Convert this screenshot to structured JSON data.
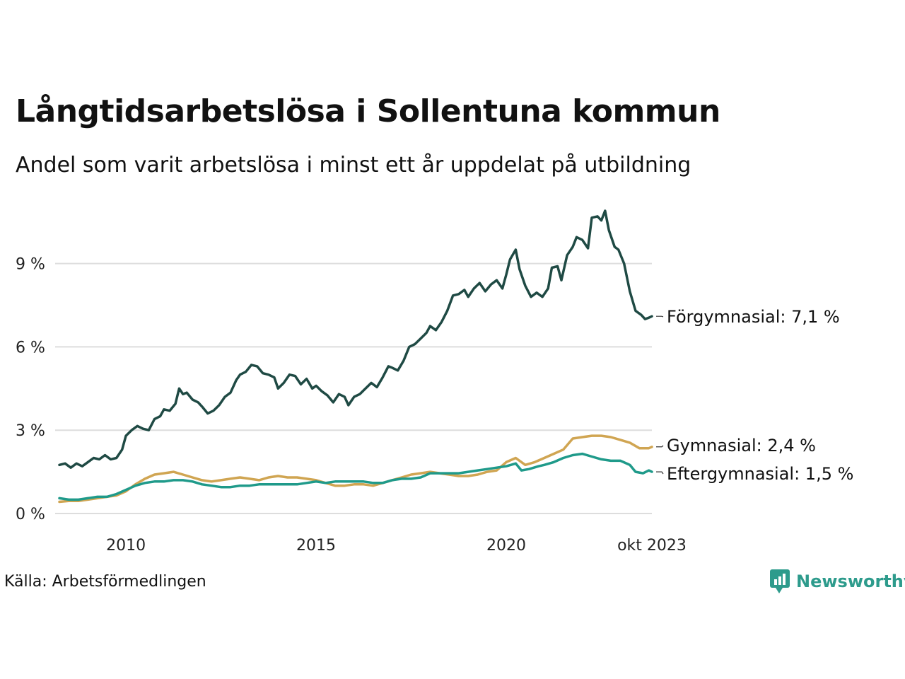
{
  "header": {
    "title": "Långtidsarbetslösa i Sollentuna kommun",
    "subtitle": "Andel som varit arbetslösa i minst ett år uppdelat på utbildning"
  },
  "footer": {
    "source": "Källa: Arbetsförmedlingen",
    "brand": "Newsworthy",
    "brand_icon": "bar-chart-speech-bubble-icon"
  },
  "colors": {
    "forgymnasial": "#1f4a44",
    "gymnasial": "#d0a552",
    "eftergymnasial": "#1f9a8a",
    "grid": "#dddddd",
    "brand": "#2d9b8c"
  },
  "chart_data": {
    "type": "line",
    "title": "Långtidsarbetslösa i Sollentuna kommun",
    "subtitle": "Andel som varit arbetslösa i minst ett år uppdelat på utbildning",
    "xlabel": "",
    "ylabel": "",
    "xlim": [
      2008.25,
      2023.83
    ],
    "ylim": [
      0,
      10.9
    ],
    "y_ticks": [
      {
        "value": 0,
        "label": "0 %"
      },
      {
        "value": 3,
        "label": "3 %"
      },
      {
        "value": 6,
        "label": "6 %"
      },
      {
        "value": 9,
        "label": "9 %"
      }
    ],
    "x_ticks": [
      {
        "value": 2010,
        "label": "2010"
      },
      {
        "value": 2015,
        "label": "2015"
      },
      {
        "value": 2020,
        "label": "2020"
      },
      {
        "value": 2023.83,
        "label": "okt 2023"
      }
    ],
    "grid": true,
    "series": [
      {
        "name": "Förgymnasial",
        "end_label": "Förgymnasial: 7,1 %",
        "color": "#1f4a44",
        "points": [
          [
            2008.25,
            1.75
          ],
          [
            2008.4,
            1.8
          ],
          [
            2008.55,
            1.65
          ],
          [
            2008.7,
            1.8
          ],
          [
            2008.85,
            1.7
          ],
          [
            2009.0,
            1.85
          ],
          [
            2009.15,
            2.0
          ],
          [
            2009.3,
            1.95
          ],
          [
            2009.45,
            2.1
          ],
          [
            2009.6,
            1.95
          ],
          [
            2009.75,
            2.0
          ],
          [
            2009.9,
            2.3
          ],
          [
            2010.0,
            2.8
          ],
          [
            2010.15,
            3.0
          ],
          [
            2010.3,
            3.15
          ],
          [
            2010.45,
            3.05
          ],
          [
            2010.6,
            3.0
          ],
          [
            2010.75,
            3.4
          ],
          [
            2010.9,
            3.5
          ],
          [
            2011.0,
            3.75
          ],
          [
            2011.15,
            3.7
          ],
          [
            2011.3,
            3.95
          ],
          [
            2011.4,
            4.5
          ],
          [
            2011.5,
            4.3
          ],
          [
            2011.6,
            4.35
          ],
          [
            2011.75,
            4.1
          ],
          [
            2011.9,
            4.0
          ],
          [
            2012.0,
            3.85
          ],
          [
            2012.15,
            3.6
          ],
          [
            2012.3,
            3.7
          ],
          [
            2012.45,
            3.9
          ],
          [
            2012.6,
            4.2
          ],
          [
            2012.75,
            4.35
          ],
          [
            2012.9,
            4.8
          ],
          [
            2013.0,
            5.0
          ],
          [
            2013.15,
            5.1
          ],
          [
            2013.3,
            5.35
          ],
          [
            2013.45,
            5.3
          ],
          [
            2013.6,
            5.05
          ],
          [
            2013.75,
            5.0
          ],
          [
            2013.9,
            4.9
          ],
          [
            2014.0,
            4.5
          ],
          [
            2014.15,
            4.7
          ],
          [
            2014.3,
            5.0
          ],
          [
            2014.45,
            4.95
          ],
          [
            2014.6,
            4.65
          ],
          [
            2014.75,
            4.85
          ],
          [
            2014.9,
            4.5
          ],
          [
            2015.0,
            4.6
          ],
          [
            2015.15,
            4.4
          ],
          [
            2015.3,
            4.25
          ],
          [
            2015.45,
            4.0
          ],
          [
            2015.6,
            4.3
          ],
          [
            2015.75,
            4.2
          ],
          [
            2015.85,
            3.9
          ],
          [
            2016.0,
            4.2
          ],
          [
            2016.15,
            4.3
          ],
          [
            2016.3,
            4.5
          ],
          [
            2016.45,
            4.7
          ],
          [
            2016.6,
            4.55
          ],
          [
            2016.75,
            4.9
          ],
          [
            2016.9,
            5.3
          ],
          [
            2017.0,
            5.25
          ],
          [
            2017.15,
            5.15
          ],
          [
            2017.3,
            5.5
          ],
          [
            2017.45,
            6.0
          ],
          [
            2017.6,
            6.1
          ],
          [
            2017.75,
            6.3
          ],
          [
            2017.9,
            6.5
          ],
          [
            2018.0,
            6.75
          ],
          [
            2018.15,
            6.6
          ],
          [
            2018.3,
            6.9
          ],
          [
            2018.45,
            7.3
          ],
          [
            2018.6,
            7.85
          ],
          [
            2018.75,
            7.9
          ],
          [
            2018.9,
            8.05
          ],
          [
            2019.0,
            7.8
          ],
          [
            2019.15,
            8.1
          ],
          [
            2019.3,
            8.3
          ],
          [
            2019.45,
            8.0
          ],
          [
            2019.6,
            8.25
          ],
          [
            2019.75,
            8.4
          ],
          [
            2019.9,
            8.1
          ],
          [
            2020.0,
            8.6
          ],
          [
            2020.1,
            9.15
          ],
          [
            2020.25,
            9.5
          ],
          [
            2020.35,
            8.8
          ],
          [
            2020.5,
            8.2
          ],
          [
            2020.65,
            7.8
          ],
          [
            2020.8,
            7.95
          ],
          [
            2020.95,
            7.8
          ],
          [
            2021.1,
            8.1
          ],
          [
            2021.2,
            8.85
          ],
          [
            2021.35,
            8.9
          ],
          [
            2021.45,
            8.4
          ],
          [
            2021.6,
            9.3
          ],
          [
            2021.75,
            9.6
          ],
          [
            2021.85,
            9.95
          ],
          [
            2022.0,
            9.85
          ],
          [
            2022.15,
            9.55
          ],
          [
            2022.25,
            10.65
          ],
          [
            2022.4,
            10.7
          ],
          [
            2022.5,
            10.55
          ],
          [
            2022.6,
            10.9
          ],
          [
            2022.7,
            10.2
          ],
          [
            2022.85,
            9.6
          ],
          [
            2022.95,
            9.5
          ],
          [
            2023.1,
            9.0
          ],
          [
            2023.25,
            8.0
          ],
          [
            2023.4,
            7.3
          ],
          [
            2023.55,
            7.15
          ],
          [
            2023.65,
            7.0
          ],
          [
            2023.75,
            7.05
          ],
          [
            2023.83,
            7.1
          ]
        ]
      },
      {
        "name": "Gymnasial",
        "end_label": "Gymnasial: 2,4 %",
        "color": "#d0a552",
        "points": [
          [
            2008.25,
            0.42
          ],
          [
            2008.5,
            0.45
          ],
          [
            2008.75,
            0.45
          ],
          [
            2009.0,
            0.5
          ],
          [
            2009.25,
            0.55
          ],
          [
            2009.5,
            0.6
          ],
          [
            2009.75,
            0.65
          ],
          [
            2010.0,
            0.8
          ],
          [
            2010.25,
            1.05
          ],
          [
            2010.5,
            1.25
          ],
          [
            2010.75,
            1.4
          ],
          [
            2011.0,
            1.45
          ],
          [
            2011.25,
            1.5
          ],
          [
            2011.5,
            1.4
          ],
          [
            2011.75,
            1.3
          ],
          [
            2012.0,
            1.2
          ],
          [
            2012.25,
            1.15
          ],
          [
            2012.5,
            1.2
          ],
          [
            2012.75,
            1.25
          ],
          [
            2013.0,
            1.3
          ],
          [
            2013.25,
            1.25
          ],
          [
            2013.5,
            1.2
          ],
          [
            2013.75,
            1.3
          ],
          [
            2014.0,
            1.35
          ],
          [
            2014.25,
            1.3
          ],
          [
            2014.5,
            1.3
          ],
          [
            2014.75,
            1.25
          ],
          [
            2015.0,
            1.2
          ],
          [
            2015.25,
            1.1
          ],
          [
            2015.5,
            1.0
          ],
          [
            2015.75,
            1.0
          ],
          [
            2016.0,
            1.05
          ],
          [
            2016.25,
            1.05
          ],
          [
            2016.5,
            1.0
          ],
          [
            2016.75,
            1.1
          ],
          [
            2017.0,
            1.2
          ],
          [
            2017.25,
            1.3
          ],
          [
            2017.5,
            1.4
          ],
          [
            2017.75,
            1.45
          ],
          [
            2018.0,
            1.5
          ],
          [
            2018.25,
            1.45
          ],
          [
            2018.5,
            1.4
          ],
          [
            2018.75,
            1.35
          ],
          [
            2019.0,
            1.35
          ],
          [
            2019.25,
            1.4
          ],
          [
            2019.5,
            1.5
          ],
          [
            2019.75,
            1.55
          ],
          [
            2020.0,
            1.85
          ],
          [
            2020.25,
            2.0
          ],
          [
            2020.5,
            1.75
          ],
          [
            2020.75,
            1.85
          ],
          [
            2021.0,
            2.0
          ],
          [
            2021.25,
            2.15
          ],
          [
            2021.5,
            2.3
          ],
          [
            2021.75,
            2.7
          ],
          [
            2022.0,
            2.75
          ],
          [
            2022.25,
            2.8
          ],
          [
            2022.5,
            2.8
          ],
          [
            2022.75,
            2.75
          ],
          [
            2023.0,
            2.65
          ],
          [
            2023.25,
            2.55
          ],
          [
            2023.5,
            2.35
          ],
          [
            2023.75,
            2.35
          ],
          [
            2023.83,
            2.4
          ]
        ]
      },
      {
        "name": "Eftergymnasial",
        "end_label": "Eftergymnasial: 1,5 %",
        "color": "#1f9a8a",
        "points": [
          [
            2008.25,
            0.55
          ],
          [
            2008.5,
            0.5
          ],
          [
            2008.75,
            0.5
          ],
          [
            2009.0,
            0.55
          ],
          [
            2009.25,
            0.6
          ],
          [
            2009.5,
            0.6
          ],
          [
            2009.75,
            0.7
          ],
          [
            2010.0,
            0.85
          ],
          [
            2010.25,
            1.0
          ],
          [
            2010.5,
            1.1
          ],
          [
            2010.75,
            1.15
          ],
          [
            2011.0,
            1.15
          ],
          [
            2011.25,
            1.2
          ],
          [
            2011.5,
            1.2
          ],
          [
            2011.75,
            1.15
          ],
          [
            2012.0,
            1.05
          ],
          [
            2012.25,
            1.0
          ],
          [
            2012.5,
            0.95
          ],
          [
            2012.75,
            0.95
          ],
          [
            2013.0,
            1.0
          ],
          [
            2013.25,
            1.0
          ],
          [
            2013.5,
            1.05
          ],
          [
            2013.75,
            1.05
          ],
          [
            2014.0,
            1.05
          ],
          [
            2014.25,
            1.05
          ],
          [
            2014.5,
            1.05
          ],
          [
            2014.75,
            1.1
          ],
          [
            2015.0,
            1.15
          ],
          [
            2015.25,
            1.1
          ],
          [
            2015.5,
            1.15
          ],
          [
            2015.75,
            1.15
          ],
          [
            2016.0,
            1.15
          ],
          [
            2016.25,
            1.15
          ],
          [
            2016.5,
            1.1
          ],
          [
            2016.75,
            1.1
          ],
          [
            2017.0,
            1.2
          ],
          [
            2017.25,
            1.25
          ],
          [
            2017.5,
            1.25
          ],
          [
            2017.75,
            1.3
          ],
          [
            2018.0,
            1.45
          ],
          [
            2018.25,
            1.45
          ],
          [
            2018.5,
            1.45
          ],
          [
            2018.75,
            1.45
          ],
          [
            2019.0,
            1.5
          ],
          [
            2019.25,
            1.55
          ],
          [
            2019.5,
            1.6
          ],
          [
            2019.75,
            1.65
          ],
          [
            2020.0,
            1.7
          ],
          [
            2020.25,
            1.8
          ],
          [
            2020.4,
            1.55
          ],
          [
            2020.6,
            1.6
          ],
          [
            2020.85,
            1.7
          ],
          [
            2021.0,
            1.75
          ],
          [
            2021.25,
            1.85
          ],
          [
            2021.5,
            2.0
          ],
          [
            2021.75,
            2.1
          ],
          [
            2022.0,
            2.15
          ],
          [
            2022.25,
            2.05
          ],
          [
            2022.5,
            1.95
          ],
          [
            2022.75,
            1.9
          ],
          [
            2023.0,
            1.9
          ],
          [
            2023.25,
            1.75
          ],
          [
            2023.4,
            1.5
          ],
          [
            2023.6,
            1.45
          ],
          [
            2023.75,
            1.55
          ],
          [
            2023.83,
            1.5
          ]
        ]
      }
    ]
  }
}
